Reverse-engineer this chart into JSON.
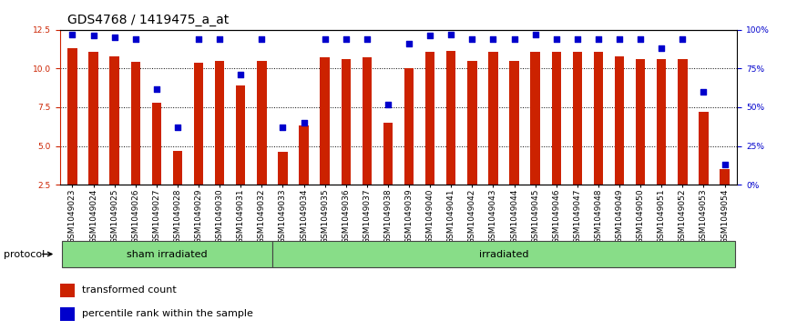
{
  "title": "GDS4768 / 1419475_a_at",
  "categories": [
    "GSM1049023",
    "GSM1049024",
    "GSM1049025",
    "GSM1049026",
    "GSM1049027",
    "GSM1049028",
    "GSM1049029",
    "GSM1049030",
    "GSM1049031",
    "GSM1049032",
    "GSM1049033",
    "GSM1049034",
    "GSM1049035",
    "GSM1049036",
    "GSM1049037",
    "GSM1049038",
    "GSM1049039",
    "GSM1049040",
    "GSM1049041",
    "GSM1049042",
    "GSM1049043",
    "GSM1049044",
    "GSM1049045",
    "GSM1049046",
    "GSM1049047",
    "GSM1049048",
    "GSM1049049",
    "GSM1049050",
    "GSM1049051",
    "GSM1049052",
    "GSM1049053",
    "GSM1049054"
  ],
  "bar_values": [
    11.3,
    11.1,
    10.8,
    10.4,
    7.8,
    4.7,
    10.35,
    10.5,
    8.9,
    10.5,
    4.6,
    6.3,
    10.7,
    10.6,
    10.7,
    6.5,
    10.0,
    11.1,
    11.15,
    10.5,
    11.1,
    10.5,
    11.1,
    11.1,
    11.1,
    11.1,
    10.8,
    10.6,
    10.6,
    10.6,
    7.2,
    3.5
  ],
  "percentile_values": [
    97,
    96,
    95,
    94,
    62,
    37,
    94,
    94,
    71,
    94,
    37,
    40,
    94,
    94,
    94,
    52,
    91,
    96,
    97,
    94,
    94,
    94,
    97,
    94,
    94,
    94,
    94,
    94,
    88,
    94,
    60,
    13
  ],
  "bar_color": "#cc2200",
  "dot_color": "#0000cc",
  "ylim_left": [
    2.5,
    12.5
  ],
  "ylim_right": [
    0,
    100
  ],
  "yticks_left": [
    2.5,
    5.0,
    7.5,
    10.0,
    12.5
  ],
  "yticks_right": [
    0,
    25,
    50,
    75,
    100
  ],
  "ytick_labels_right": [
    "0%",
    "25%",
    "50%",
    "75%",
    "100%"
  ],
  "group1_label": "sham irradiated",
  "group2_label": "irradiated",
  "group1_count": 10,
  "protocol_label": "protocol",
  "legend_bar_label": "transformed count",
  "legend_dot_label": "percentile rank within the sample",
  "bg_color": "#ffffff",
  "plot_bg_color": "#ffffff",
  "group_bar_color": "#88dd88",
  "group_border_color": "#444444",
  "title_fontsize": 10,
  "tick_fontsize": 6.5,
  "axis_label_fontsize": 8,
  "legend_fontsize": 8,
  "group_label_fontsize": 8
}
